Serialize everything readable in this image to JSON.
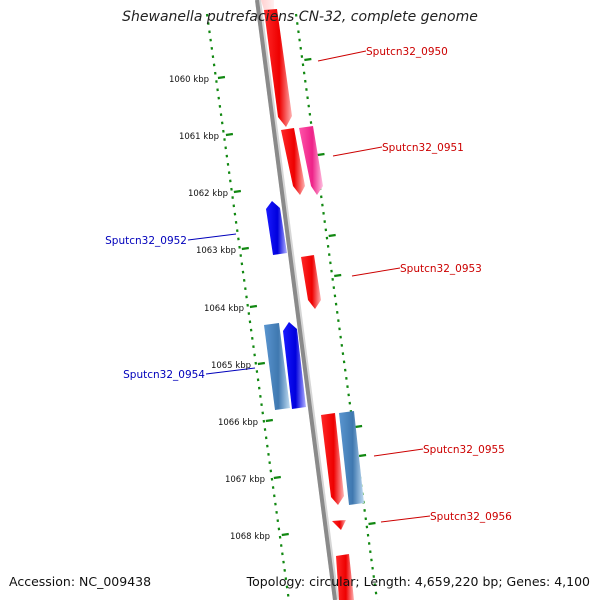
{
  "title": "Shewanella putrefaciens CN-32, complete genome",
  "accession_label": "Accession: NC_009438",
  "topology_label": "Topology: circular; Length: 4,659,220 bp; Genes: 4,100",
  "colors": {
    "forward_strand": "#ff0000",
    "reverse_strand": "#0000ff",
    "forward_label": "#cc0000",
    "reverse_label": "#0000bb",
    "magenta_gene": "#ff3399",
    "steel_gene": "#4a86c0",
    "backbone": "#8a8a8a",
    "tick": "#118811"
  },
  "scale_labels": [
    "1060 kbp",
    "1061 kbp",
    "1062 kbp",
    "1063 kbp",
    "1064 kbp",
    "1065 kbp",
    "1066 kbp",
    "1067 kbp",
    "1068 kbp"
  ],
  "gene_labels": [
    {
      "id": "Sputcn32_0950",
      "strand": "forward"
    },
    {
      "id": "Sputcn32_0951",
      "strand": "forward"
    },
    {
      "id": "Sputcn32_0952",
      "strand": "reverse"
    },
    {
      "id": "Sputcn32_0953",
      "strand": "forward"
    },
    {
      "id": "Sputcn32_0954",
      "strand": "reverse"
    },
    {
      "id": "Sputcn32_0955",
      "strand": "forward"
    },
    {
      "id": "Sputcn32_0956",
      "strand": "forward"
    }
  ]
}
